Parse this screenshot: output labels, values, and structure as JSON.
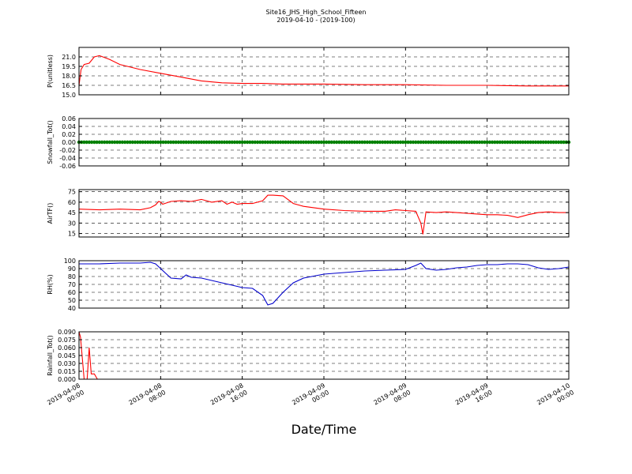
{
  "figure": {
    "title": "Site16_JHS_High_School_Fifteen",
    "subtitle": "2019-04-10 - (2019-100)",
    "xlabel": "Date/Time"
  },
  "chart_data": {
    "type": "line",
    "x_range": [
      "2019-04-08 00:00",
      "2019-04-10 00:00"
    ],
    "x_tick_labels": [
      [
        "2019-04-08",
        "00:00"
      ],
      [
        "2019-04-08",
        "08:00"
      ],
      [
        "2019-04-08",
        "16:00"
      ],
      [
        "2019-04-09",
        "00:00"
      ],
      [
        "2019-04-09",
        "08:00"
      ],
      [
        "2019-04-09",
        "16:00"
      ],
      [
        "2019-04-10",
        "00:00"
      ]
    ],
    "grid": true,
    "panels": [
      {
        "ylabel": "P(unitless)",
        "ylim": [
          15.0,
          22.5
        ],
        "yticks": [
          15.0,
          16.5,
          18.0,
          19.5,
          21.0
        ],
        "ytick_labels": [
          "15.0",
          "16.5",
          "18.0",
          "19.5",
          "21.0"
        ],
        "color": "#ff0000",
        "hours": [
          0,
          0.2,
          0.5,
          1,
          1.5,
          2,
          3,
          4,
          6,
          8,
          10,
          12,
          14,
          16,
          18,
          20,
          24,
          28,
          32,
          36,
          40,
          44,
          48
        ],
        "values": [
          16.5,
          19.0,
          19.8,
          20.0,
          21.0,
          21.2,
          20.6,
          19.8,
          19.0,
          18.4,
          17.8,
          17.2,
          16.9,
          16.8,
          16.8,
          16.7,
          16.7,
          16.6,
          16.6,
          16.5,
          16.5,
          16.4,
          16.4
        ]
      },
      {
        "ylabel": "Snowfall_Tot()",
        "ylim": [
          -0.06,
          0.06
        ],
        "yticks": [
          -0.06,
          -0.04,
          -0.02,
          0.0,
          0.02,
          0.04,
          0.06
        ],
        "ytick_labels": [
          "-0.06",
          "-0.04",
          "-0.02",
          "0.00",
          "0.02",
          "0.04",
          "0.06"
        ],
        "color": "#008000",
        "markers": true,
        "hours": [
          0,
          48
        ],
        "values": [
          0.0,
          0.0
        ]
      },
      {
        "ylabel": "AirTF()",
        "ylim": [
          10,
          78
        ],
        "yticks": [
          15,
          30,
          45,
          60,
          75
        ],
        "ytick_labels": [
          "15",
          "30",
          "45",
          "60",
          "75"
        ],
        "color": "#ff0000",
        "hours": [
          0,
          2,
          4,
          6,
          7,
          7.5,
          7.8,
          8,
          8.2,
          9,
          10,
          11,
          12,
          13,
          14,
          14.5,
          15,
          15.5,
          16,
          17,
          18,
          18.5,
          19,
          20,
          21,
          22,
          24,
          26,
          28,
          30,
          31,
          32,
          33,
          33.5,
          33.7,
          34,
          35,
          36,
          37,
          38,
          39,
          40,
          41,
          42,
          43,
          44,
          45,
          46,
          47,
          48
        ],
        "values": [
          50,
          49,
          50,
          49,
          52,
          56,
          61,
          60,
          57,
          61,
          62,
          61,
          64,
          60,
          62,
          57,
          60,
          57,
          58,
          58,
          62,
          70,
          70,
          69,
          58,
          54,
          50,
          48,
          47,
          47,
          49,
          48,
          47,
          30,
          14,
          46,
          45,
          46,
          45,
          44,
          43,
          42,
          42,
          41,
          38,
          42,
          45,
          46,
          45,
          45
        ]
      },
      {
        "ylabel": "RH(%)",
        "ylim": [
          40,
          100
        ],
        "yticks": [
          40,
          50,
          60,
          70,
          80,
          90,
          100
        ],
        "ytick_labels": [
          "40",
          "50",
          "60",
          "70",
          "80",
          "90",
          "100"
        ],
        "color": "#0000cc",
        "hours": [
          0,
          2,
          4,
          6,
          7,
          7.5,
          8,
          9,
          10,
          10.5,
          11,
          12,
          13,
          14,
          15,
          16,
          17,
          18,
          18.5,
          19,
          20,
          21,
          22,
          24,
          26,
          28,
          30,
          32,
          33,
          33.5,
          34,
          35,
          36,
          37,
          38,
          39,
          40,
          41,
          42,
          43,
          44,
          45,
          46,
          47,
          48
        ],
        "values": [
          96,
          96,
          97,
          97,
          98,
          96,
          90,
          78,
          77,
          82,
          79,
          78,
          75,
          72,
          69,
          66,
          65,
          56,
          44,
          46,
          60,
          72,
          78,
          83,
          85,
          87,
          88,
          89,
          94,
          97,
          90,
          88,
          89,
          91,
          92,
          94,
          95,
          95,
          96,
          96,
          95,
          91,
          89,
          90,
          92
        ]
      },
      {
        "ylabel": "Rainfall_Tot()",
        "ylim": [
          0.0,
          0.09
        ],
        "yticks": [
          0.0,
          0.015,
          0.03,
          0.045,
          0.06,
          0.075,
          0.09
        ],
        "ytick_labels": [
          "0.000",
          "0.015",
          "0.030",
          "0.045",
          "0.060",
          "0.075",
          "0.090"
        ],
        "color": "#ff0000",
        "hours": [
          0,
          0.15,
          0.5,
          0.8,
          1.0,
          1.2,
          1.5,
          1.8,
          2.0,
          48
        ],
        "values": [
          0.09,
          0.08,
          0.0,
          0.0,
          0.06,
          0.01,
          0.01,
          0.0,
          0.0,
          0.0
        ]
      }
    ]
  }
}
